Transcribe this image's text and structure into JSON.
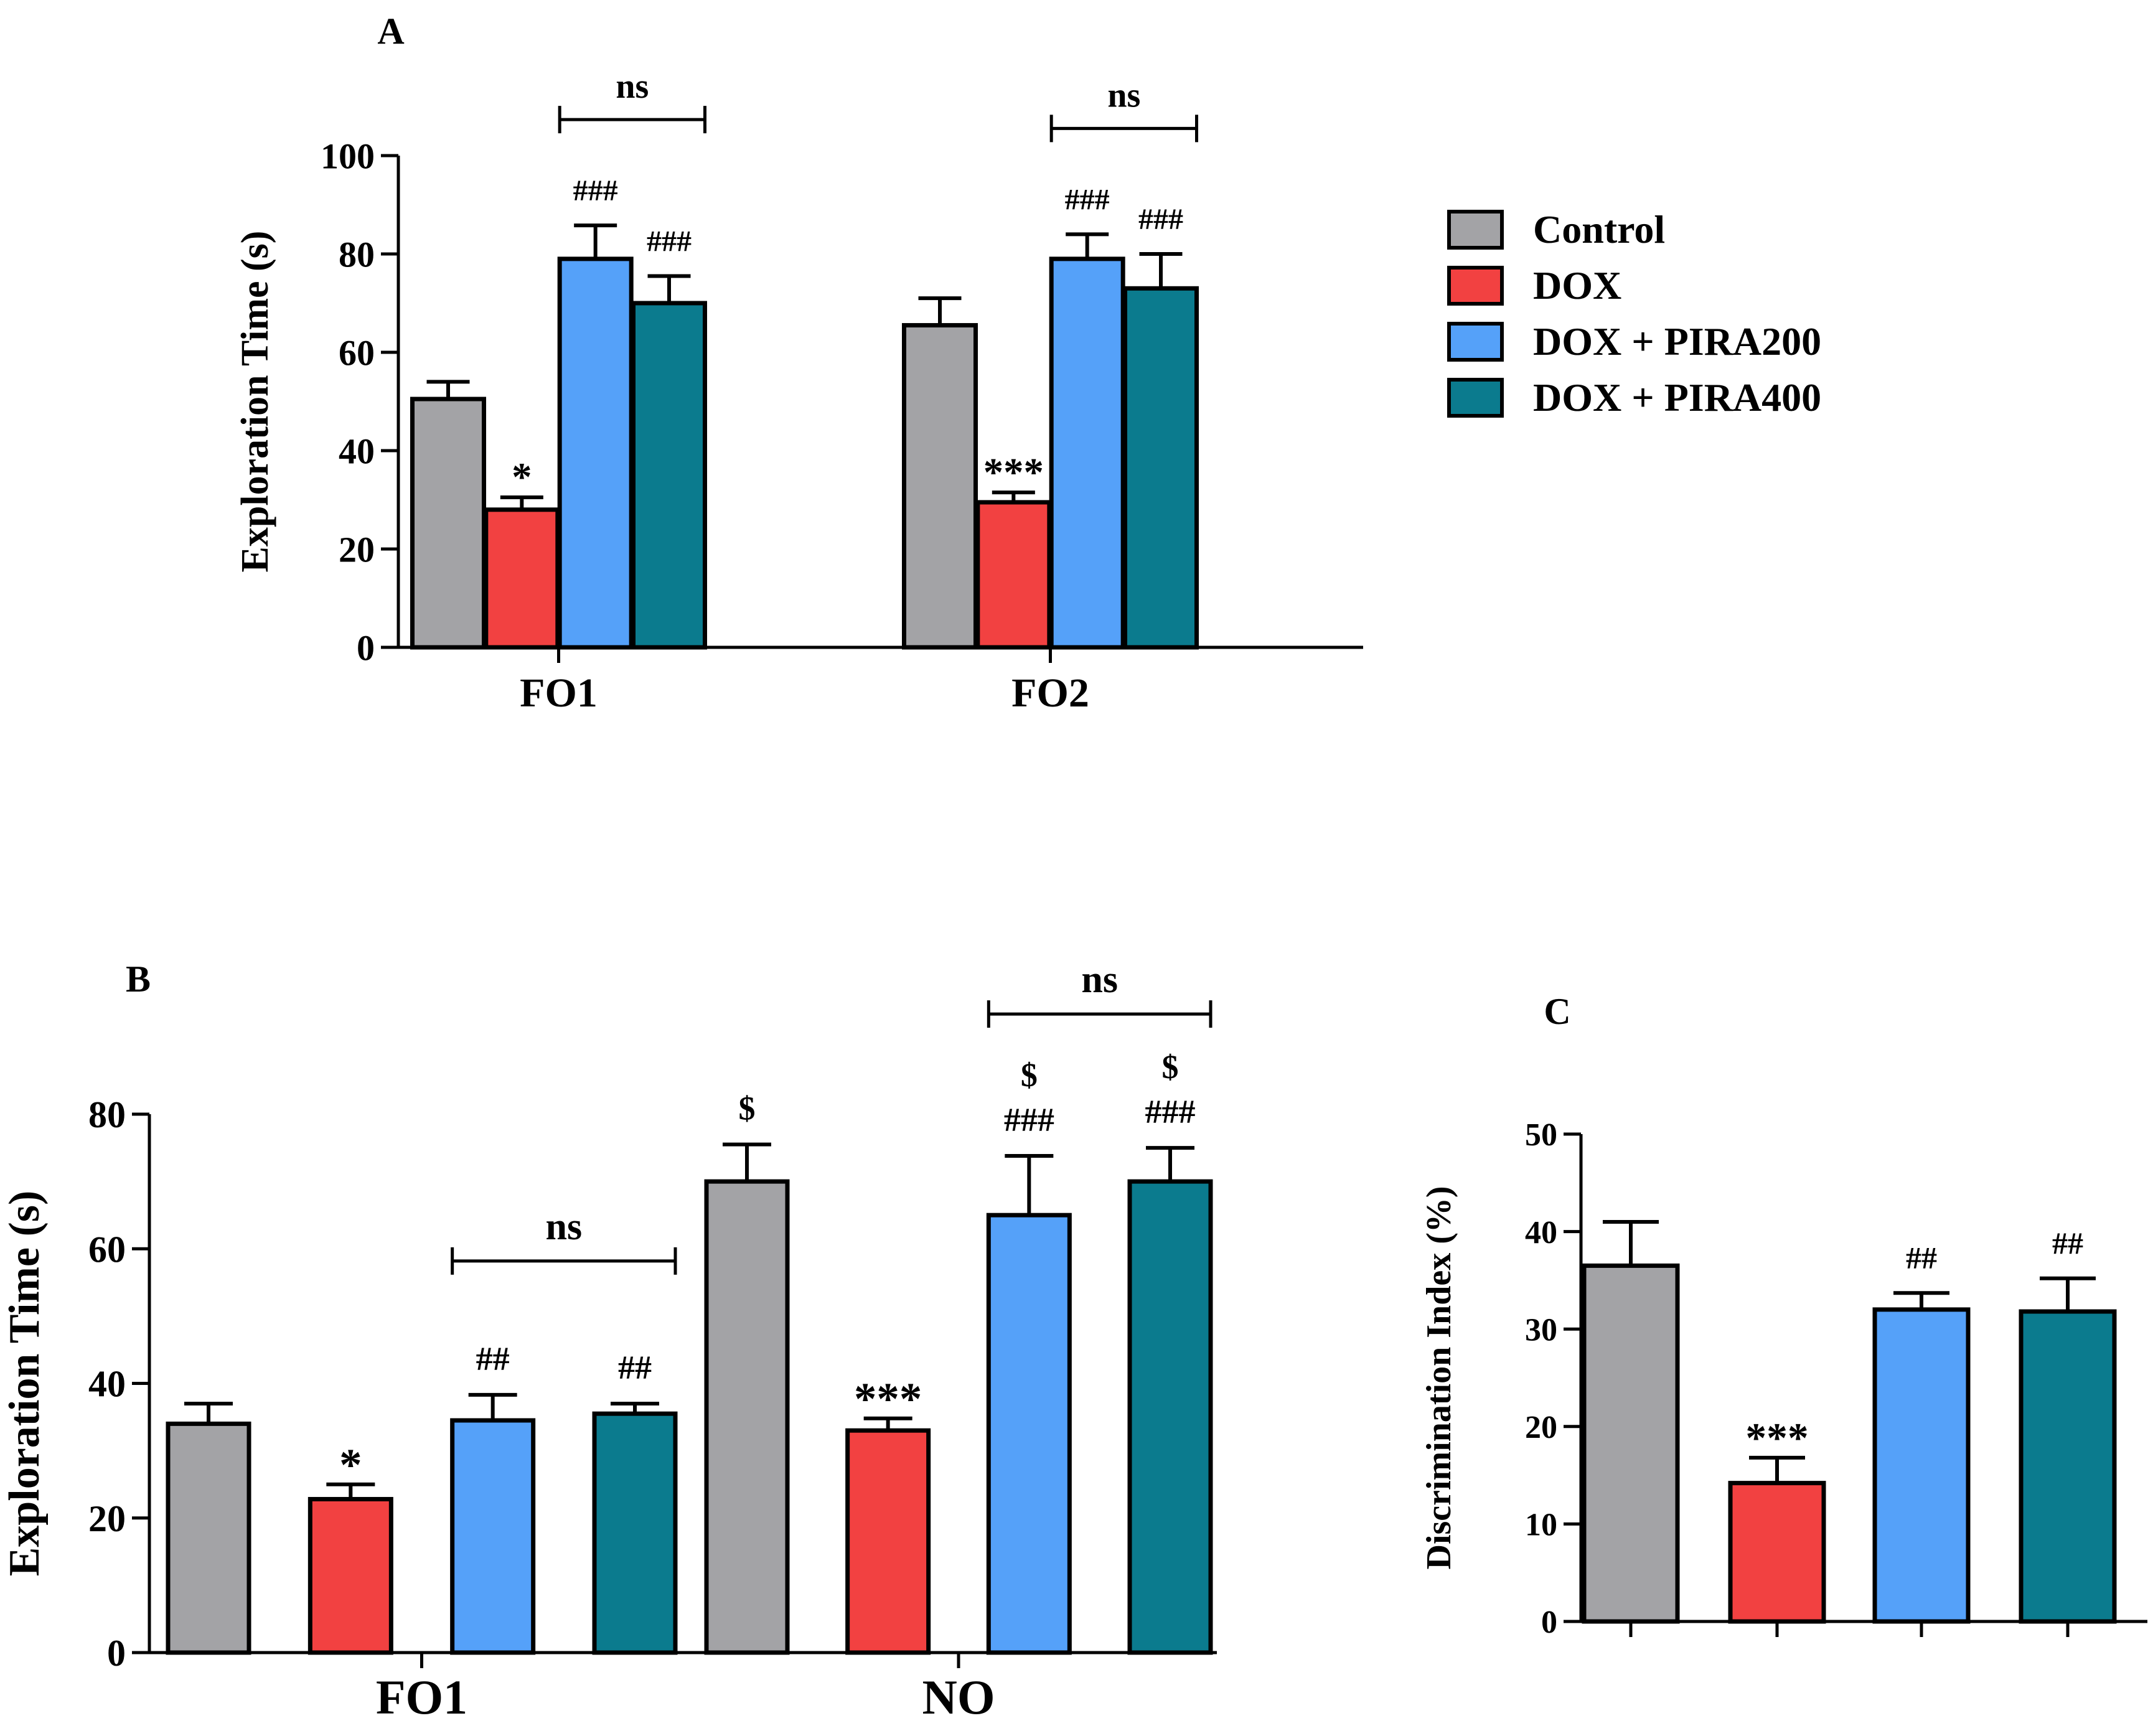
{
  "legend": {
    "entries": [
      {
        "label": "Control",
        "color": "#a3a3a6"
      },
      {
        "label": "DOX",
        "color": "#f24141"
      },
      {
        "label": "DOX + PIRA200",
        "color": "#55a1f9"
      },
      {
        "label": "DOX + PIRA400",
        "color": "#0b7b8e"
      }
    ]
  },
  "chart_data": [
    {
      "panel": "A",
      "type": "bar",
      "ylabel": "Exploration Time (s)",
      "ylim": [
        0,
        100
      ],
      "yticks": [
        0,
        20,
        40,
        60,
        80,
        100
      ],
      "categories": [
        "FO1",
        "FO2"
      ],
      "series": [
        {
          "name": "Control",
          "values": [
            50.5,
            65.5
          ],
          "errors": [
            3.5,
            5.5
          ],
          "annotations": [
            "",
            ""
          ]
        },
        {
          "name": "DOX",
          "values": [
            28,
            29.5
          ],
          "errors": [
            2.5,
            2.0
          ],
          "annotations": [
            "*",
            "***"
          ]
        },
        {
          "name": "DOX + PIRA200",
          "values": [
            79,
            79
          ],
          "errors": [
            6.8,
            5.0
          ],
          "annotations": [
            "###",
            "###"
          ]
        },
        {
          "name": "DOX + PIRA400",
          "values": [
            70,
            73
          ],
          "errors": [
            5.5,
            7.0
          ],
          "annotations": [
            "###",
            "###"
          ]
        }
      ],
      "brackets": [
        {
          "category": "FO1",
          "from_series": 2,
          "to_series": 3,
          "label": "ns"
        },
        {
          "category": "FO2",
          "from_series": 2,
          "to_series": 3,
          "label": "ns"
        }
      ]
    },
    {
      "panel": "B",
      "type": "bar",
      "ylabel": "Exploration Time (s)",
      "ylim": [
        0,
        80
      ],
      "yticks": [
        0,
        20,
        40,
        60,
        80
      ],
      "categories": [
        "FO1",
        "NO"
      ],
      "series": [
        {
          "name": "Control",
          "values": [
            34,
            70
          ],
          "errors": [
            3.0,
            5.5
          ],
          "annotations": [
            "",
            "$"
          ]
        },
        {
          "name": "DOX",
          "values": [
            22.8,
            33
          ],
          "errors": [
            2.2,
            1.8
          ],
          "annotations": [
            "*",
            "***"
          ]
        },
        {
          "name": "DOX + PIRA200",
          "values": [
            34.5,
            65
          ],
          "errors": [
            3.8,
            8.8
          ],
          "annotations": [
            "##",
            "$\n###"
          ]
        },
        {
          "name": "DOX + PIRA400",
          "values": [
            35.5,
            70
          ],
          "errors": [
            1.5,
            5.0
          ],
          "annotations": [
            "##",
            "$\n###"
          ]
        }
      ],
      "brackets": [
        {
          "category": "FO1",
          "from_series": 2,
          "to_series": 3,
          "label": "ns"
        },
        {
          "category": "NO",
          "from_series": 2,
          "to_series": 3,
          "label": "ns"
        }
      ]
    },
    {
      "panel": "C",
      "type": "bar",
      "ylabel": "Discrimination Index (%)",
      "ylim": [
        0,
        50
      ],
      "yticks": [
        0,
        10,
        20,
        30,
        40,
        50
      ],
      "categories": [
        "Control",
        "DOX",
        "DOX + PIRA200",
        "DOX + PIRA400"
      ],
      "values": [
        36.5,
        14.2,
        32,
        31.8
      ],
      "errors": [
        4.5,
        2.6,
        1.7,
        3.4
      ],
      "annotations": [
        "",
        "***",
        "##",
        "##"
      ]
    }
  ]
}
